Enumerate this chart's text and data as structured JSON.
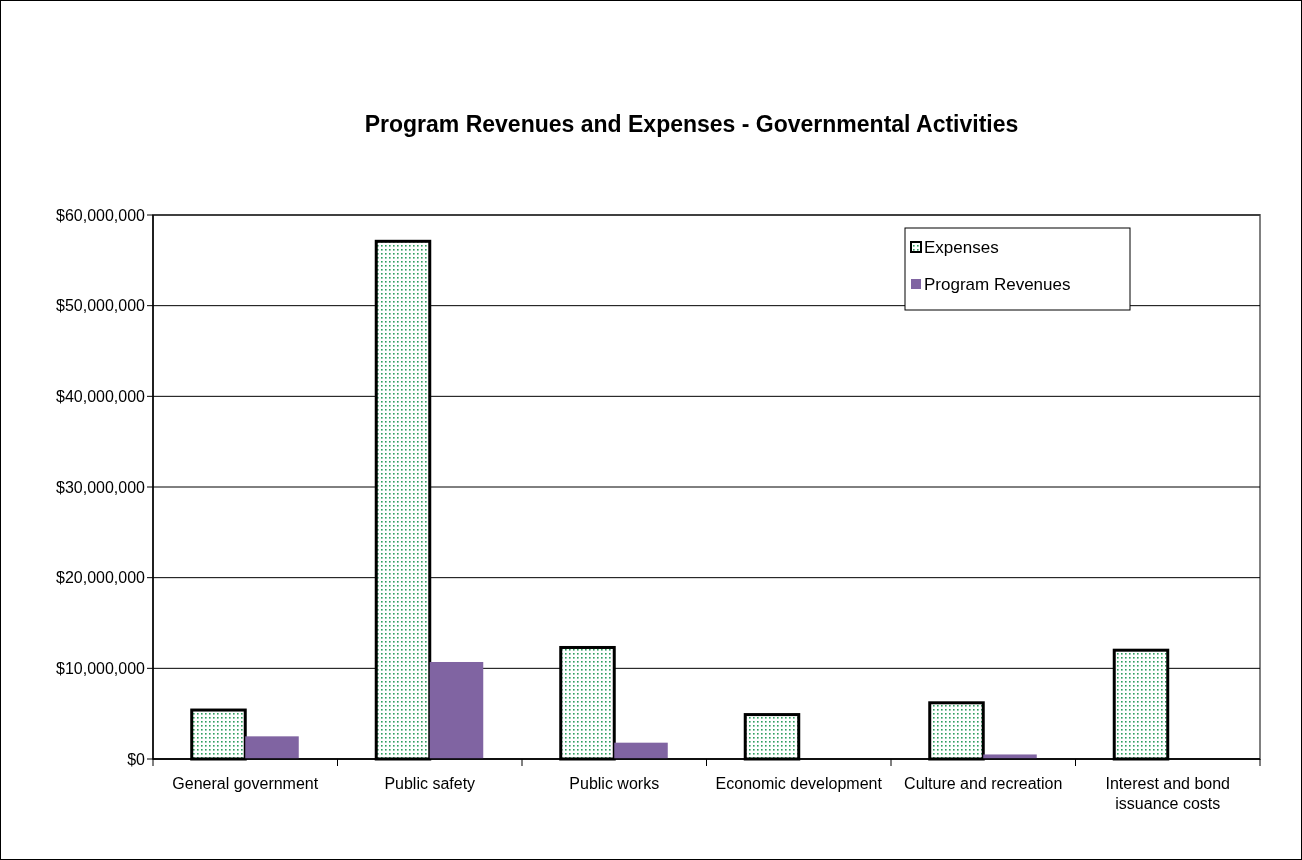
{
  "chart_data": {
    "type": "bar",
    "title": "Program Revenues and Expenses - Governmental Activities",
    "categories": [
      "General government",
      "Public safety",
      "Public works",
      "Economic development",
      "Culture and recreation",
      "Interest and bond issuance costs"
    ],
    "series": [
      {
        "name": "Expenses",
        "color": "#2e9e5e",
        "values": [
          5400000,
          57100000,
          12300000,
          4900000,
          6200000,
          12000000
        ]
      },
      {
        "name": "Program Revenues",
        "color": "#8064a2",
        "values": [
          2500000,
          10700000,
          1800000,
          0,
          500000,
          0
        ]
      }
    ],
    "ylim": [
      0,
      60000000
    ],
    "yticks": [
      {
        "value": 0,
        "label": "$0"
      },
      {
        "value": 10000000,
        "label": "$10,000,000"
      },
      {
        "value": 20000000,
        "label": "$20,000,000"
      },
      {
        "value": 30000000,
        "label": "$30,000,000"
      },
      {
        "value": 40000000,
        "label": "$40,000,000"
      },
      {
        "value": 50000000,
        "label": "$50,000,000"
      },
      {
        "value": 60000000,
        "label": "$60,000,000"
      }
    ],
    "grid": "y",
    "legend": "top right"
  }
}
